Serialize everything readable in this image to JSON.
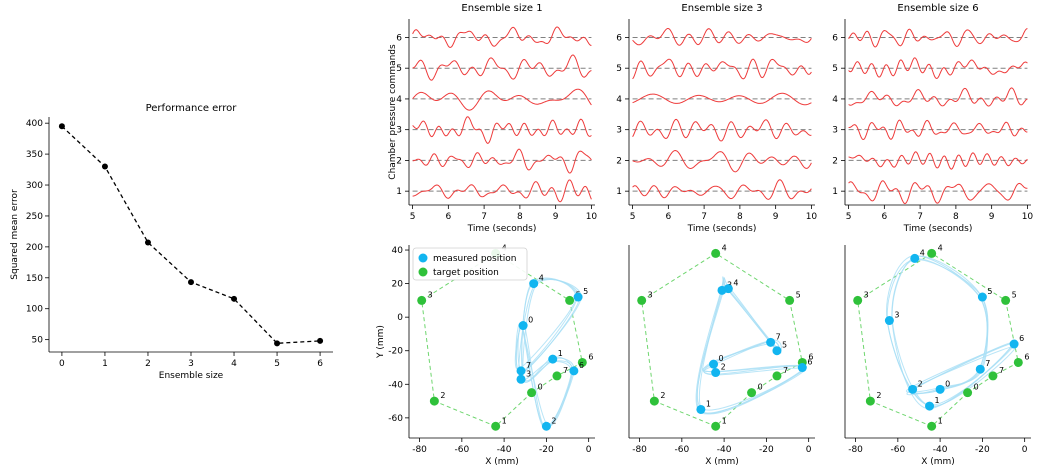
{
  "colors": {
    "trace": "#ee3b3b",
    "dash": "#808080",
    "measured": "#12b5f0",
    "target": "#2fc13a",
    "measured_trail": "#a8dff5",
    "target_poly": "#6fd66f"
  },
  "chart_data": [
    {
      "type": "line",
      "title": "Performance error",
      "xlabel": "Ensemble size",
      "ylabel": "Squared mean error",
      "x": [
        0,
        1,
        2,
        3,
        4,
        5,
        6
      ],
      "y": [
        395,
        330,
        207,
        143,
        116,
        44,
        48
      ],
      "xticks": [
        "0",
        "1",
        "2",
        "3",
        "4",
        "5",
        "6"
      ],
      "yticks": [
        "50",
        "100",
        "150",
        "200",
        "250",
        "300",
        "350",
        "400"
      ],
      "ylim": [
        30,
        410
      ],
      "xlim": [
        -0.3,
        6.3
      ],
      "style": "dashed-black-with-dots"
    },
    {
      "type": "line",
      "panels": [
        {
          "title": "Ensemble size 1",
          "seed": 3
        },
        {
          "title": "Ensemble size 3",
          "seed": 17
        },
        {
          "title": "Ensemble size 6",
          "seed": 29
        }
      ],
      "ylabel": "Chamber pressure commands",
      "xlabel": "Time (seconds)",
      "xticks": [
        "5",
        "6",
        "7",
        "8",
        "9",
        "10"
      ],
      "yticks": [
        "1",
        "2",
        "3",
        "4",
        "5",
        "6"
      ],
      "xlim": [
        4.9,
        10.1
      ],
      "ylim": [
        0.55,
        6.6
      ],
      "series": [
        {
          "name": "1",
          "baseline": 1
        },
        {
          "name": "2",
          "baseline": 2
        },
        {
          "name": "3",
          "baseline": 3
        },
        {
          "name": "4",
          "baseline": 4
        },
        {
          "name": "5",
          "baseline": 5
        },
        {
          "name": "6",
          "baseline": 6
        }
      ]
    },
    {
      "type": "scatter",
      "ylabel": "Y (mm)",
      "xlabel": "X (mm)",
      "xticks": [
        "-80",
        "-60",
        "-40",
        "-20",
        "0"
      ],
      "yticks": [
        "-60",
        "-40",
        "-20",
        "0",
        "20",
        "40"
      ],
      "xlim": [
        -85,
        3
      ],
      "ylim": [
        -72,
        43
      ],
      "legend": {
        "position": "top-left",
        "items": [
          "measured position",
          "target position"
        ]
      },
      "target_points": [
        {
          "label": "0",
          "x": -27,
          "y": -45
        },
        {
          "label": "1",
          "x": -44,
          "y": -65
        },
        {
          "label": "2",
          "x": -73,
          "y": -50
        },
        {
          "label": "3",
          "x": -79,
          "y": 10
        },
        {
          "label": "4",
          "x": -44,
          "y": 38
        },
        {
          "label": "5",
          "x": -9,
          "y": 10
        },
        {
          "label": "6",
          "x": -3,
          "y": -27
        },
        {
          "label": "7",
          "x": -15,
          "y": -35
        }
      ],
      "panels": [
        {
          "measured_points": [
            {
              "label": "0",
              "x": -31,
              "y": -5
            },
            {
              "label": "1",
              "x": -17,
              "y": -25
            },
            {
              "label": "2",
              "x": -20,
              "y": -65
            },
            {
              "label": "3",
              "x": -32,
              "y": -37
            },
            {
              "label": "4",
              "x": -26,
              "y": 20
            },
            {
              "label": "5",
              "x": -5,
              "y": 12
            },
            {
              "label": "6",
              "x": -7,
              "y": -32
            },
            {
              "label": "7",
              "x": -32,
              "y": -32
            }
          ]
        },
        {
          "measured_points": [
            {
              "label": "0",
              "x": -45,
              "y": -28
            },
            {
              "label": "1",
              "x": -51,
              "y": -55
            },
            {
              "label": "2",
              "x": -44,
              "y": -33
            },
            {
              "label": "3",
              "x": -41,
              "y": 16
            },
            {
              "label": "4",
              "x": -38,
              "y": 17
            },
            {
              "label": "5",
              "x": -15,
              "y": -20
            },
            {
              "label": "6",
              "x": -3,
              "y": -30
            },
            {
              "label": "7",
              "x": -18,
              "y": -15
            }
          ]
        },
        {
          "measured_points": [
            {
              "label": "0",
              "x": -40,
              "y": -43
            },
            {
              "label": "1",
              "x": -45,
              "y": -53
            },
            {
              "label": "2",
              "x": -53,
              "y": -43
            },
            {
              "label": "3",
              "x": -64,
              "y": -2
            },
            {
              "label": "4",
              "x": -52,
              "y": 35
            },
            {
              "label": "5",
              "x": -20,
              "y": 12
            },
            {
              "label": "6",
              "x": -5,
              "y": -16
            },
            {
              "label": "7",
              "x": -21,
              "y": -31
            }
          ]
        }
      ]
    }
  ]
}
